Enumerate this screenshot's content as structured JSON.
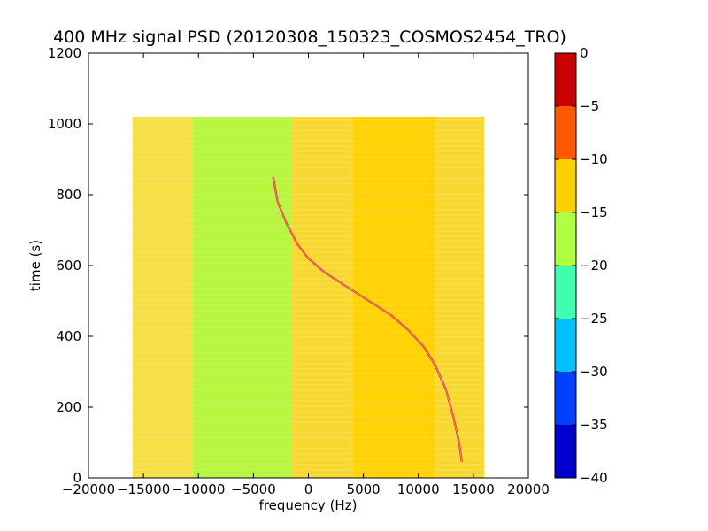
{
  "chart_data": {
    "type": "heatmap",
    "title": "400 MHz signal PSD (20120308_150323_COSMOS2454_TRO)",
    "xlabel": "frequency (Hz)",
    "ylabel": "time (s)",
    "xlim": [
      -20000,
      20000
    ],
    "ylim": [
      0,
      1200
    ],
    "x_ticks": [
      -20000,
      -15000,
      -10000,
      -5000,
      0,
      5000,
      10000,
      15000,
      20000
    ],
    "x_tick_labels": [
      "−20000",
      "−15000",
      "−10000",
      "−5000",
      "0",
      "5000",
      "10000",
      "15000",
      "20000"
    ],
    "y_ticks": [
      0,
      200,
      400,
      600,
      800,
      1000,
      1200
    ],
    "y_tick_labels": [
      "0",
      "200",
      "400",
      "600",
      "800",
      "1000",
      "1200"
    ],
    "data_extent": {
      "x": [
        -16000,
        16000
      ],
      "y": [
        0,
        1020
      ]
    },
    "colorbar": {
      "range": [
        -40,
        0
      ],
      "levels": [
        -40,
        -35,
        -30,
        -25,
        -20,
        -15,
        -10,
        -5,
        0
      ],
      "tick_labels": [
        "−40",
        "−35",
        "−30",
        "−25",
        "−20",
        "−15",
        "−10",
        "−5",
        "0"
      ],
      "colors": [
        "#0000cd",
        "#0040ff",
        "#00c0ff",
        "#40ffb0",
        "#b0ff40",
        "#ffd000",
        "#ff5a00",
        "#c80000"
      ]
    },
    "background_bands": [
      {
        "x": [
          -16000,
          -10500
        ],
        "level_color": "#f5df45"
      },
      {
        "x": [
          -10500,
          -1500
        ],
        "level_color": "#b8f53d"
      },
      {
        "x": [
          -1500,
          4000
        ],
        "level_color": "#f8d830"
      },
      {
        "x": [
          4000,
          11500
        ],
        "level_color": "#ffd200"
      },
      {
        "x": [
          11500,
          16000
        ],
        "level_color": "#f8d830"
      }
    ],
    "signal_trace": {
      "color": "#e03030",
      "points": [
        {
          "x": -3200,
          "y": 850
        },
        {
          "x": -2800,
          "y": 780
        },
        {
          "x": -2000,
          "y": 720
        },
        {
          "x": -1000,
          "y": 660
        },
        {
          "x": 0,
          "y": 620
        },
        {
          "x": 1500,
          "y": 580
        },
        {
          "x": 3000,
          "y": 550
        },
        {
          "x": 4500,
          "y": 520
        },
        {
          "x": 6000,
          "y": 490
        },
        {
          "x": 7500,
          "y": 460
        },
        {
          "x": 9000,
          "y": 420
        },
        {
          "x": 10500,
          "y": 370
        },
        {
          "x": 11500,
          "y": 320
        },
        {
          "x": 12500,
          "y": 250
        },
        {
          "x": 13200,
          "y": 170
        },
        {
          "x": 13700,
          "y": 100
        },
        {
          "x": 13950,
          "y": 45
        }
      ]
    }
  }
}
